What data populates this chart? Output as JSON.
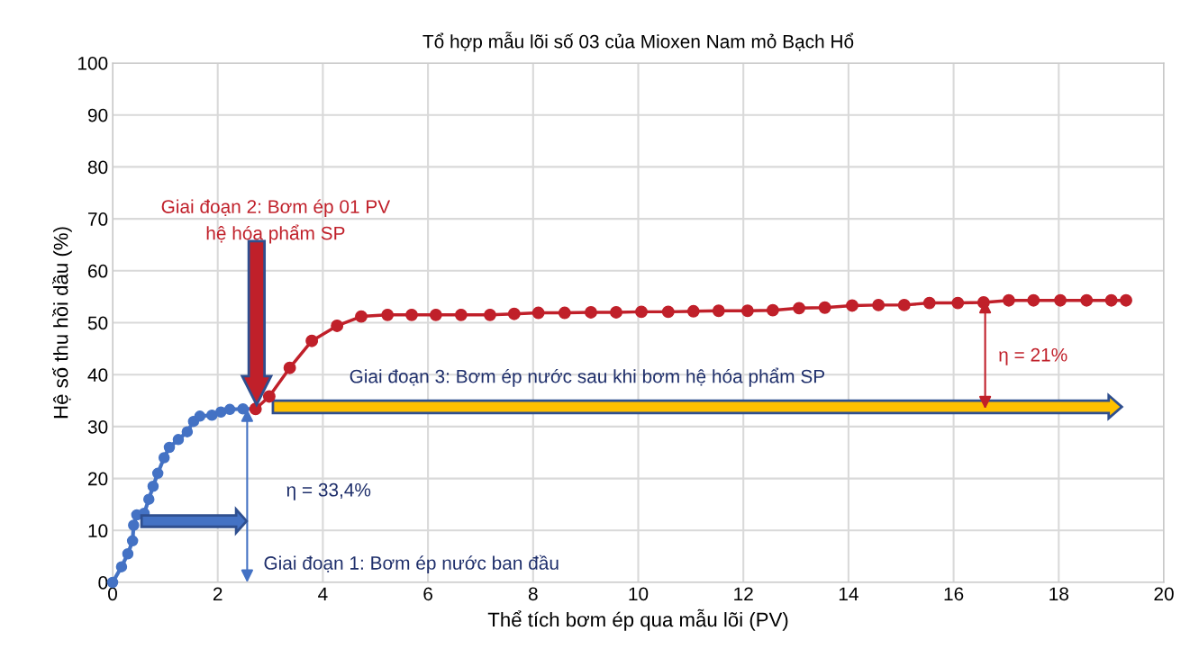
{
  "chart_data": {
    "type": "line",
    "title": "Tổ hợp mẫu lõi số 03 của Mioxen Nam mỏ Bạch Hổ",
    "xlabel": "Thể tích bơm ép qua mẫu lõi (PV)",
    "ylabel": "Hệ số thu hồi dầu (%)",
    "series": [
      {
        "color": "#4472c4",
        "x": [
          0,
          0.17,
          0.29,
          0.38,
          0.4,
          0.46,
          0.6,
          0.69,
          0.77,
          0.86,
          0.98,
          1.08,
          1.25,
          1.42,
          1.54,
          1.66,
          1.89,
          2.06,
          2.23,
          2.48,
          2.72
        ],
        "values": [
          0,
          3,
          5.5,
          8,
          11,
          13,
          13.3,
          16,
          18.5,
          21,
          24,
          26,
          27.5,
          29,
          31,
          32,
          32.2,
          32.8,
          33.3,
          33.4,
          33.4
        ]
      },
      {
        "color": "#c0202a",
        "x": [
          2.72,
          2.98,
          3.37,
          3.79,
          4.27,
          4.73,
          5.23,
          5.69,
          6.15,
          6.63,
          7.18,
          7.64,
          8.1,
          8.6,
          9.1,
          9.58,
          10.06,
          10.57,
          11.05,
          11.53,
          12.08,
          12.56,
          13.06,
          13.55,
          14.07,
          14.57,
          15.06,
          15.54,
          16.08,
          16.57,
          17.05,
          17.52,
          18.03,
          18.53,
          19.0,
          19.28
        ],
        "values": [
          33.4,
          35.8,
          41.3,
          46.5,
          49.4,
          51.2,
          51.5,
          51.5,
          51.5,
          51.5,
          51.5,
          51.7,
          51.9,
          51.9,
          52.0,
          52.0,
          52.1,
          52.1,
          52.2,
          52.3,
          52.3,
          52.4,
          52.8,
          52.9,
          53.3,
          53.4,
          53.4,
          53.8,
          53.8,
          53.9,
          54.3,
          54.3,
          54.3,
          54.3,
          54.3,
          54.3
        ]
      }
    ],
    "xlim": [
      0,
      20
    ],
    "xticks": [
      0,
      2,
      4,
      6,
      8,
      10,
      12,
      14,
      16,
      18,
      20
    ],
    "ylim": [
      0,
      100
    ],
    "yticks": [
      0,
      10,
      20,
      30,
      40,
      50,
      60,
      70,
      80,
      90,
      100
    ],
    "grid": true,
    "marker": "circle",
    "line_style": "solid",
    "annotations": [
      "Giai đoạn 1: Bơm ép nước ban đầu",
      "η = 33,4%",
      "Giai đoạn 2: Bơm ép 01 PV\nhệ hóa phẩm SP",
      "Giai đoạn 3: Bơm ép nước sau khi bơm hệ hóa phẩm SP",
      "η = 21%"
    ]
  }
}
